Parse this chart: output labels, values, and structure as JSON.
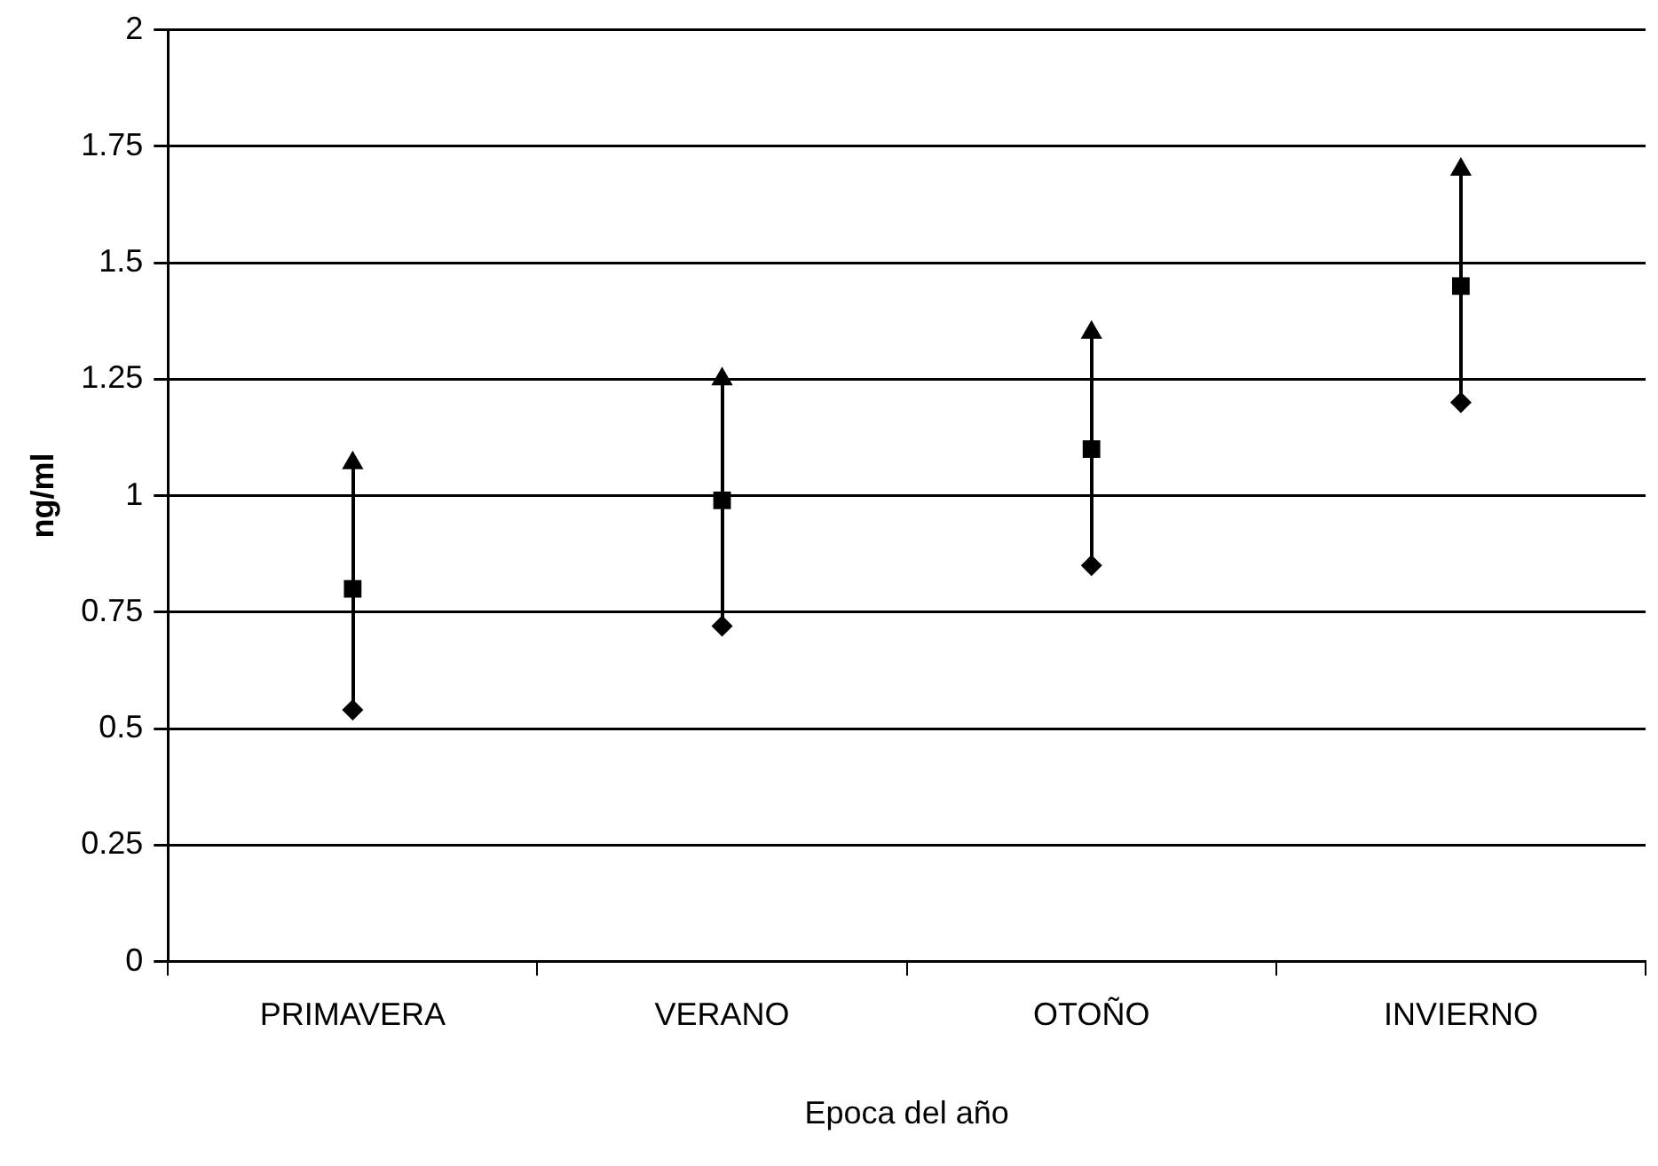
{
  "chart_data": {
    "type": "scatter",
    "xlabel": "Epoca del año",
    "ylabel": "ng/ml",
    "categories": [
      "PRIMAVERA",
      "VERANO",
      "OTOÑO",
      "INVIERNO"
    ],
    "ylim": [
      0,
      2
    ],
    "yticks": [
      0,
      0.25,
      0.5,
      0.75,
      1,
      1.25,
      1.5,
      1.75,
      2
    ],
    "grid": "y",
    "legend": false,
    "series": [
      {
        "color": "#000000",
        "marker": "triangle",
        "values": [
          1.07,
          1.25,
          1.35,
          1.7
        ]
      },
      {
        "color": "#000000",
        "marker": "square",
        "values": [
          0.8,
          0.99,
          1.1,
          1.45
        ]
      },
      {
        "color": "#000000",
        "marker": "diamond",
        "values": [
          0.54,
          0.72,
          0.85,
          1.2
        ]
      }
    ]
  }
}
